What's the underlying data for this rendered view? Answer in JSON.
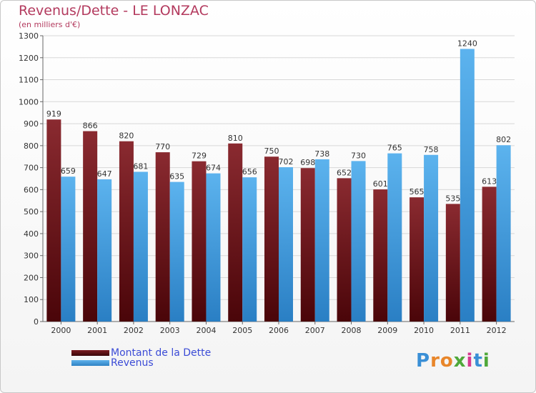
{
  "header": {
    "title": "Revenus/Dette - LE LONZAC",
    "subtitle": "(en milliers d'€)"
  },
  "chart_data": {
    "type": "bar",
    "categories": [
      "2000",
      "2001",
      "2002",
      "2003",
      "2004",
      "2005",
      "2006",
      "2007",
      "2008",
      "2009",
      "2010",
      "2011",
      "2012"
    ],
    "series": [
      {
        "name": "Montant de la Dette",
        "color": "#7a1a1f",
        "values": [
          919,
          866,
          820,
          770,
          729,
          810,
          750,
          698,
          652,
          601,
          565,
          535,
          613
        ]
      },
      {
        "name": "Revenus",
        "color": "#4fa3e0",
        "values": [
          659,
          647,
          681,
          635,
          674,
          656,
          702,
          738,
          730,
          765,
          758,
          1240,
          802
        ]
      }
    ],
    "ylim": [
      0,
      1300
    ],
    "yticks": [
      0,
      100,
      200,
      300,
      400,
      500,
      600,
      700,
      800,
      900,
      1000,
      1100,
      1200,
      1300
    ],
    "grid": true,
    "legend_position": "bottom-left"
  },
  "legend": {
    "dette_label": "Montant de la Dette",
    "revenus_label": "Revenus"
  },
  "logo": {
    "text": "Proxiti",
    "letters": [
      "P",
      "r",
      "o",
      "x",
      "i",
      "t",
      "i"
    ],
    "colors": [
      "#3a8fd6",
      "#e8862a",
      "#e8862a",
      "#4fa83a",
      "#d63a8f",
      "#3a8fd6",
      "#4fa83a"
    ]
  }
}
